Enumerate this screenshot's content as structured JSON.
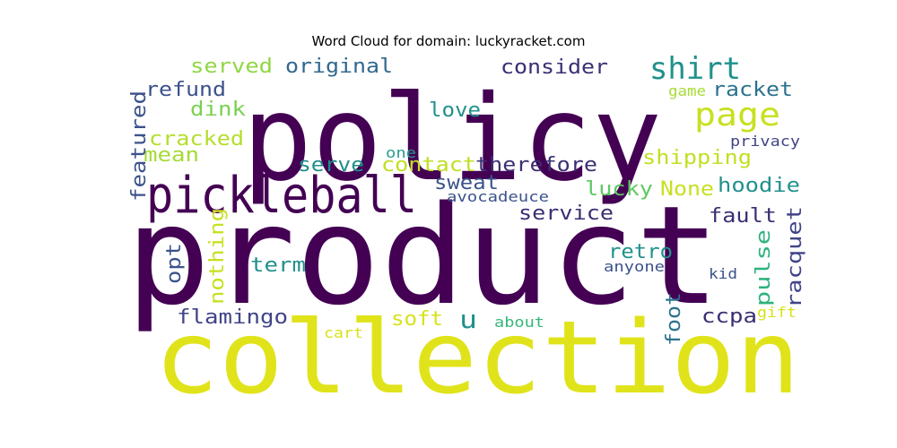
{
  "title": "Word Cloud for domain: luckyracket.com",
  "colors": {
    "dark_purple": "#440154",
    "indigo": "#3b528b",
    "teal": "#21918c",
    "green": "#35b779",
    "lime": "#90d743",
    "yellow": "#e0e31a"
  },
  "words": [
    {
      "text": "product",
      "color": "#440154"
    },
    {
      "text": "policy",
      "color": "#440154"
    },
    {
      "text": "collection",
      "color": "#e0e31a"
    },
    {
      "text": "pickleball",
      "color": "#440154"
    },
    {
      "text": "page",
      "color": "#c8e020"
    },
    {
      "text": "shirt",
      "color": "#21918c"
    },
    {
      "text": "served",
      "color": "#90d743"
    },
    {
      "text": "original",
      "color": "#31688e"
    },
    {
      "text": "consider",
      "color": "#3b2f73"
    },
    {
      "text": "refund",
      "color": "#3b528b"
    },
    {
      "text": "dink",
      "color": "#7ad151"
    },
    {
      "text": "cracked",
      "color": "#b5de2b"
    },
    {
      "text": "mean",
      "color": "#a5db36"
    },
    {
      "text": "featured",
      "color": "#3b528b"
    },
    {
      "text": "love",
      "color": "#21918c"
    },
    {
      "text": "one",
      "color": "#2a9d8f"
    },
    {
      "text": "game",
      "color": "#a8db34"
    },
    {
      "text": "racket",
      "color": "#2c728e"
    },
    {
      "text": "privacy",
      "color": "#414487"
    },
    {
      "text": "serve",
      "color": "#1f8f8c"
    },
    {
      "text": "contact",
      "color": "#c2df23"
    },
    {
      "text": "therefore",
      "color": "#3b2f73"
    },
    {
      "text": "shipping",
      "color": "#c2df23"
    },
    {
      "text": "sweat",
      "color": "#3b528b"
    },
    {
      "text": "avocadeuce",
      "color": "#3b528b"
    },
    {
      "text": "lucky",
      "color": "#5ec962"
    },
    {
      "text": "None",
      "color": "#c8e020"
    },
    {
      "text": "hoodie",
      "color": "#21918c"
    },
    {
      "text": "service",
      "color": "#3b2f73"
    },
    {
      "text": "fault",
      "color": "#3b2f73"
    },
    {
      "text": "nothing",
      "color": "#c8e020"
    },
    {
      "text": "opt",
      "color": "#3b528b"
    },
    {
      "text": "term",
      "color": "#21918c"
    },
    {
      "text": "retro",
      "color": "#21918c"
    },
    {
      "text": "pulse",
      "color": "#2db27d"
    },
    {
      "text": "racquet",
      "color": "#414487"
    },
    {
      "text": "anyone",
      "color": "#3b528b"
    },
    {
      "text": "kid",
      "color": "#3b528b"
    },
    {
      "text": "flamingo",
      "color": "#414487"
    },
    {
      "text": "u",
      "color": "#21918c"
    },
    {
      "text": "soft",
      "color": "#d8e219"
    },
    {
      "text": "foot",
      "color": "#2c728e"
    },
    {
      "text": "ccpa",
      "color": "#3b2f73"
    },
    {
      "text": "gift",
      "color": "#d8e219"
    },
    {
      "text": "cart",
      "color": "#d8e219"
    },
    {
      "text": "about",
      "color": "#35b779"
    }
  ]
}
